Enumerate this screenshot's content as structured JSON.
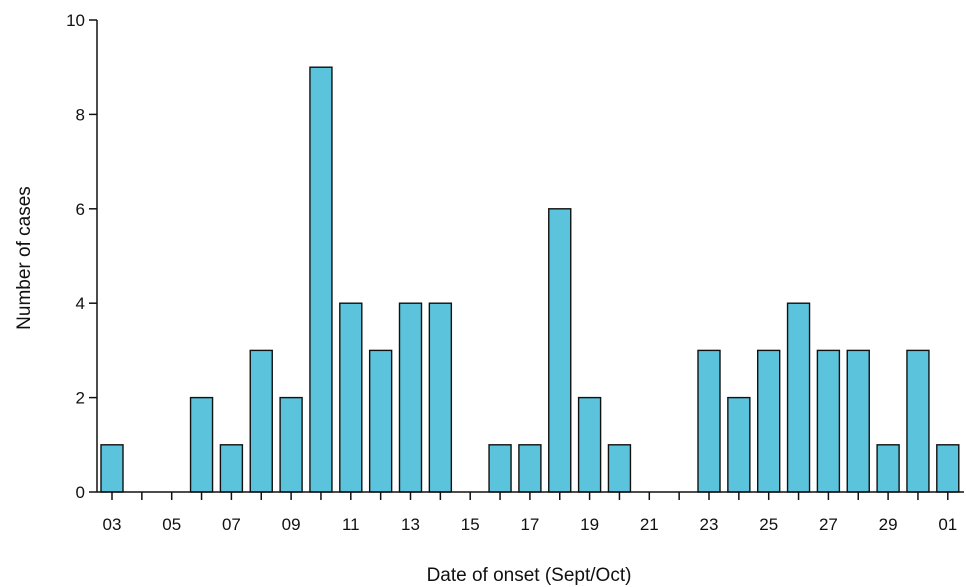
{
  "chart_data": {
    "type": "bar",
    "title": "",
    "xlabel": "Date of onset (Sept/Oct)",
    "ylabel": "Number of cases",
    "ylim": [
      0,
      10
    ],
    "yticks": [
      0,
      2,
      4,
      6,
      8,
      10
    ],
    "grid": false,
    "legend": "none",
    "bar_color": "#5bc3dc",
    "categories": [
      "03",
      "04",
      "05",
      "06",
      "07",
      "08",
      "09",
      "10",
      "11",
      "12",
      "13",
      "14",
      "15",
      "16",
      "17",
      "18",
      "19",
      "20",
      "21",
      "22",
      "23",
      "24",
      "25",
      "26",
      "27",
      "28",
      "29",
      "30",
      "01"
    ],
    "values": [
      1,
      0,
      0,
      2,
      1,
      3,
      2,
      9,
      4,
      3,
      4,
      4,
      0,
      1,
      1,
      6,
      2,
      1,
      0,
      0,
      3,
      2,
      3,
      4,
      3,
      3,
      1,
      3,
      1
    ],
    "xtick_labels": [
      "03",
      "05",
      "07",
      "09",
      "11",
      "13",
      "15",
      "17",
      "19",
      "21",
      "23",
      "25",
      "27",
      "29",
      "01"
    ]
  }
}
